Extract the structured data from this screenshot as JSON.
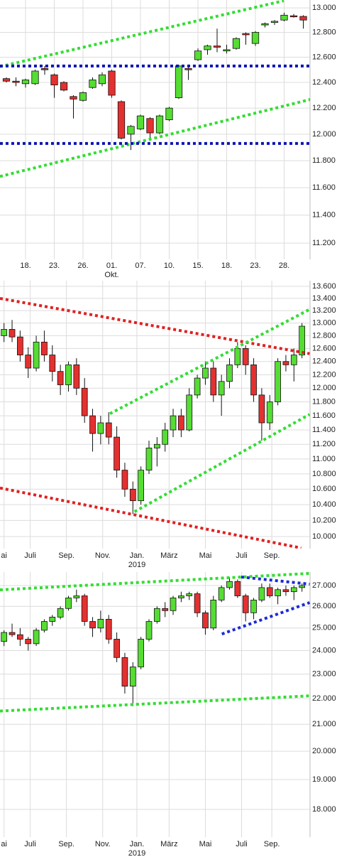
{
  "chart_data": [
    {
      "type": "candlestick",
      "log_scale": true,
      "grid": true,
      "up_color": "#55dd33",
      "down_color": "#e53030",
      "categories": [
        null,
        null,
        "18.",
        null,
        null,
        "23.",
        null,
        null,
        "26.",
        null,
        null,
        "01.",
        null,
        null,
        "07.",
        null,
        null,
        "10.",
        null,
        null,
        "15.",
        null,
        null,
        "18.",
        null,
        null,
        "23.",
        null,
        null,
        "28.",
        null,
        null
      ],
      "x_sublabels": [
        {
          "category": 11,
          "label": "Okt."
        }
      ],
      "open": [
        12430,
        12410,
        12390,
        12390,
        12510,
        12460,
        12400,
        12290,
        12260,
        12360,
        12390,
        12490,
        12250,
        12000,
        12040,
        12120,
        12010,
        12110,
        12280,
        12510,
        12580,
        12660,
        12690,
        12650,
        12670,
        12790,
        12710,
        12860,
        12880,
        12900,
        12935,
        12930
      ],
      "high": [
        12440,
        12440,
        12430,
        12500,
        12530,
        12470,
        12410,
        12300,
        12330,
        12440,
        12480,
        12500,
        12260,
        12070,
        12150,
        12130,
        12150,
        12210,
        12540,
        12520,
        12670,
        12700,
        12830,
        12700,
        12760,
        12800,
        12810,
        12880,
        12900,
        12960,
        12950,
        12940
      ],
      "low": [
        12400,
        12370,
        12360,
        12380,
        12460,
        12280,
        12330,
        12120,
        12250,
        12350,
        12370,
        12280,
        11960,
        11880,
        12030,
        11950,
        12000,
        12100,
        12270,
        12420,
        12570,
        12620,
        12640,
        12630,
        12660,
        12700,
        12690,
        12840,
        12860,
        12890,
        12920,
        12830
      ],
      "close": [
        12410,
        12400,
        12420,
        12490,
        12500,
        12380,
        12340,
        12270,
        12320,
        12420,
        12460,
        12300,
        11970,
        12060,
        12140,
        12010,
        12140,
        12200,
        12530,
        12500,
        12650,
        12690,
        12680,
        12660,
        12750,
        12780,
        12800,
        12870,
        12890,
        12940,
        12930,
        12900
      ],
      "ylim": [
        11085,
        13065
      ],
      "yticks": [
        {
          "value": 13000,
          "label": "13.000"
        },
        {
          "value": 12800,
          "label": "12.800"
        },
        {
          "value": 12600,
          "label": "12.600"
        },
        {
          "value": 12400,
          "label": "12.400"
        },
        {
          "value": 12200,
          "label": "12.200"
        },
        {
          "value": 12000,
          "label": "12.000"
        },
        {
          "value": 11800,
          "label": "11.800"
        },
        {
          "value": 11600,
          "label": "11.600"
        },
        {
          "value": 11400,
          "label": "11.400"
        },
        {
          "value": 11200,
          "label": "11.200"
        }
      ],
      "lines": [
        {
          "color": "#33dd33",
          "points": [
            [
              -0.67,
              12525
            ],
            [
              28.96,
              13059
            ]
          ]
        },
        {
          "color": "#33dd33",
          "points": [
            [
              -0.67,
              11683
            ],
            [
              31.9,
              12270
            ]
          ]
        },
        {
          "color": "#0a14b4",
          "points": [
            [
              -0.67,
              12530
            ],
            [
              31.9,
              12530
            ]
          ]
        },
        {
          "color": "#0a14b4",
          "points": [
            [
              -0.67,
              11930
            ],
            [
              31.9,
              11930
            ]
          ]
        }
      ]
    },
    {
      "type": "candlestick",
      "log_scale": true,
      "grid": true,
      "up_color": "#55dd33",
      "down_color": "#e53030",
      "x": [
        0,
        2,
        4,
        6,
        8,
        10,
        12,
        14,
        16,
        18,
        20,
        22,
        24,
        26,
        28,
        30,
        32,
        34,
        36,
        38,
        40,
        42,
        44,
        46,
        48,
        50,
        52,
        54,
        56,
        58,
        60,
        62,
        64,
        66,
        68,
        70,
        72,
        74
      ],
      "xlim": [
        -1,
        76
      ],
      "xticks": [
        {
          "value": 0,
          "label": "ai"
        },
        {
          "value": 6.5,
          "label": "Juli"
        },
        {
          "value": 15.5,
          "label": "Sep."
        },
        {
          "value": 24.5,
          "label": "Nov."
        },
        {
          "value": 33,
          "label": "Jan."
        },
        {
          "value": 41,
          "label": "März"
        },
        {
          "value": 50,
          "label": "Mai"
        },
        {
          "value": 59,
          "label": "Juli"
        },
        {
          "value": 66.5,
          "label": "Sep."
        }
      ],
      "x_sublabels": [
        {
          "value": 33,
          "label": "2019"
        }
      ],
      "open": [
        12800,
        12900,
        12780,
        12500,
        12300,
        12700,
        12500,
        12250,
        12050,
        12350,
        12000,
        11600,
        11350,
        11500,
        11300,
        10850,
        10600,
        10450,
        10850,
        11150,
        11200,
        11400,
        11600,
        11400,
        11900,
        12150,
        12300,
        11900,
        12100,
        12350,
        12600,
        12350,
        11900,
        11500,
        11800,
        12400,
        12350,
        12500
      ],
      "high": [
        13000,
        13050,
        12880,
        12620,
        12800,
        12880,
        12650,
        12350,
        12400,
        12450,
        12150,
        11700,
        11600,
        11650,
        11450,
        10950,
        10700,
        10900,
        11250,
        11300,
        11500,
        11700,
        11700,
        12000,
        12200,
        12400,
        12400,
        12200,
        12450,
        12700,
        12650,
        12450,
        12000,
        11900,
        12450,
        12500,
        12600,
        13000
      ],
      "low": [
        12700,
        12700,
        12400,
        12150,
        12250,
        12400,
        12100,
        11900,
        11950,
        11900,
        11500,
        11100,
        11200,
        11200,
        10750,
        10500,
        10280,
        10400,
        10800,
        10900,
        11100,
        11300,
        11300,
        11380,
        11850,
        12050,
        11800,
        11600,
        12000,
        12300,
        12200,
        11800,
        11250,
        11400,
        11750,
        12250,
        12100,
        12450
      ],
      "close": [
        12900,
        12780,
        12500,
        12300,
        12700,
        12500,
        12250,
        12050,
        12350,
        12000,
        11600,
        11350,
        11500,
        11300,
        10850,
        10600,
        10450,
        10850,
        11150,
        11200,
        11400,
        11600,
        11400,
        11900,
        12150,
        12300,
        11900,
        12100,
        12350,
        12600,
        12350,
        11900,
        11500,
        11800,
        12400,
        12350,
        12500,
        12950
      ],
      "ylim": [
        9853,
        13695
      ],
      "yticks": [
        {
          "value": 13600,
          "label": "13.600"
        },
        {
          "value": 13400,
          "label": "13.400"
        },
        {
          "value": 13200,
          "label": "13.200"
        },
        {
          "value": 13000,
          "label": "13.000"
        },
        {
          "value": 12800,
          "label": "12.800"
        },
        {
          "value": 12600,
          "label": "12.600"
        },
        {
          "value": 12400,
          "label": "12.400"
        },
        {
          "value": 12200,
          "label": "12.200"
        },
        {
          "value": 12000,
          "label": "12.000"
        },
        {
          "value": 11800,
          "label": "11.800"
        },
        {
          "value": 11600,
          "label": "11.600"
        },
        {
          "value": 11400,
          "label": "11.400"
        },
        {
          "value": 11200,
          "label": "11.200"
        },
        {
          "value": 11000,
          "label": "11.000"
        },
        {
          "value": 10800,
          "label": "10.800"
        },
        {
          "value": 10600,
          "label": "10.600"
        },
        {
          "value": 10400,
          "label": "10.400"
        },
        {
          "value": 10200,
          "label": "10.200"
        },
        {
          "value": 10000,
          "label": "10.000"
        }
      ],
      "lines": [
        {
          "color": "#e02020",
          "points": [
            [
              -1,
              13400
            ],
            [
              75.9,
              12520
            ]
          ]
        },
        {
          "color": "#e02020",
          "points": [
            [
              -1,
              10615
            ],
            [
              73.8,
              9860
            ]
          ]
        },
        {
          "color": "#33dd33",
          "points": [
            [
              26.3,
              11630
            ],
            [
              75.9,
              13220
            ]
          ]
        },
        {
          "color": "#33dd33",
          "points": [
            [
              32.4,
              10310
            ],
            [
              75.9,
              11620
            ]
          ]
        }
      ]
    },
    {
      "type": "candlestick",
      "log_scale": true,
      "grid": true,
      "up_color": "#55dd33",
      "down_color": "#e53030",
      "x": [
        0,
        2,
        4,
        6,
        8,
        10,
        12,
        14,
        16,
        18,
        20,
        22,
        24,
        26,
        28,
        30,
        32,
        34,
        36,
        38,
        40,
        42,
        44,
        46,
        48,
        50,
        52,
        54,
        56,
        58,
        60,
        62,
        64,
        66,
        68,
        70,
        72,
        74
      ],
      "xlim": [
        -1,
        76
      ],
      "xticks": [
        {
          "value": 0,
          "label": "ai"
        },
        {
          "value": 6.5,
          "label": "Juli"
        },
        {
          "value": 15.5,
          "label": "Sep."
        },
        {
          "value": 24.5,
          "label": "Nov."
        },
        {
          "value": 33,
          "label": "Jan."
        },
        {
          "value": 41,
          "label": "März"
        },
        {
          "value": 50,
          "label": "Mai"
        },
        {
          "value": 59,
          "label": "Juli"
        },
        {
          "value": 66.5,
          "label": "Sep."
        }
      ],
      "x_sublabels": [
        {
          "value": 33,
          "label": "2019"
        }
      ],
      "open": [
        24400,
        24800,
        24700,
        24500,
        24300,
        24900,
        25300,
        25500,
        25900,
        26400,
        26500,
        25300,
        25000,
        25400,
        24500,
        23700,
        22500,
        23300,
        24500,
        25300,
        25900,
        25800,
        26400,
        26500,
        26600,
        25700,
        25000,
        26300,
        26900,
        27200,
        26500,
        25700,
        26300,
        26900,
        26500,
        26800,
        26700,
        26900
      ],
      "high": [
        24900,
        25200,
        25000,
        24600,
        25000,
        25400,
        25600,
        26000,
        26500,
        26800,
        26600,
        25500,
        25800,
        25600,
        24800,
        23900,
        23500,
        24600,
        25400,
        26000,
        26200,
        26500,
        26700,
        26700,
        26700,
        25800,
        26500,
        27000,
        27400,
        27300,
        26600,
        26400,
        27100,
        27100,
        26900,
        27000,
        27000,
        27100
      ],
      "low": [
        24200,
        24600,
        24200,
        24000,
        24200,
        24800,
        25100,
        25400,
        25800,
        26200,
        25100,
        24600,
        24800,
        24300,
        23500,
        22200,
        21700,
        23200,
        24400,
        25200,
        25500,
        25600,
        26200,
        26300,
        25500,
        24700,
        24900,
        26200,
        26800,
        26400,
        25300,
        25400,
        26200,
        26400,
        26100,
        26500,
        26300,
        26700
      ],
      "close": [
        24800,
        24700,
        24500,
        24300,
        24900,
        25300,
        25500,
        25900,
        26400,
        26500,
        25300,
        25000,
        25400,
        24500,
        23700,
        22500,
        23300,
        24500,
        25300,
        25900,
        25800,
        26400,
        26500,
        26600,
        25700,
        25000,
        26300,
        26900,
        27200,
        26500,
        25700,
        26300,
        26900,
        26500,
        26800,
        26700,
        26900,
        27000
      ],
      "ylim": [
        17119,
        27668
      ],
      "yticks": [
        {
          "value": 27000,
          "label": "27.000"
        },
        {
          "value": 26000,
          "label": "26.000"
        },
        {
          "value": 25000,
          "label": "25.000"
        },
        {
          "value": 24000,
          "label": "24.000"
        },
        {
          "value": 23000,
          "label": "23.000"
        },
        {
          "value": 22000,
          "label": "22.000"
        },
        {
          "value": 21000,
          "label": "21.000"
        },
        {
          "value": 20000,
          "label": "20.000"
        },
        {
          "value": 19000,
          "label": "19.000"
        },
        {
          "value": 18000,
          "label": "18.000"
        }
      ],
      "lines": [
        {
          "color": "#33dd33",
          "points": [
            [
              -1,
              26790
            ],
            [
              75.9,
              27600
            ]
          ]
        },
        {
          "color": "#33dd33",
          "points": [
            [
              -1,
              21510
            ],
            [
              75.9,
              22110
            ]
          ]
        },
        {
          "color": "#1a2ad8",
          "points": [
            [
              58.9,
              27420
            ],
            [
              75.9,
              27070
            ]
          ]
        },
        {
          "color": "#1a2ad8",
          "points": [
            [
              54.1,
              24730
            ],
            [
              75.9,
              26180
            ]
          ]
        }
      ]
    }
  ]
}
